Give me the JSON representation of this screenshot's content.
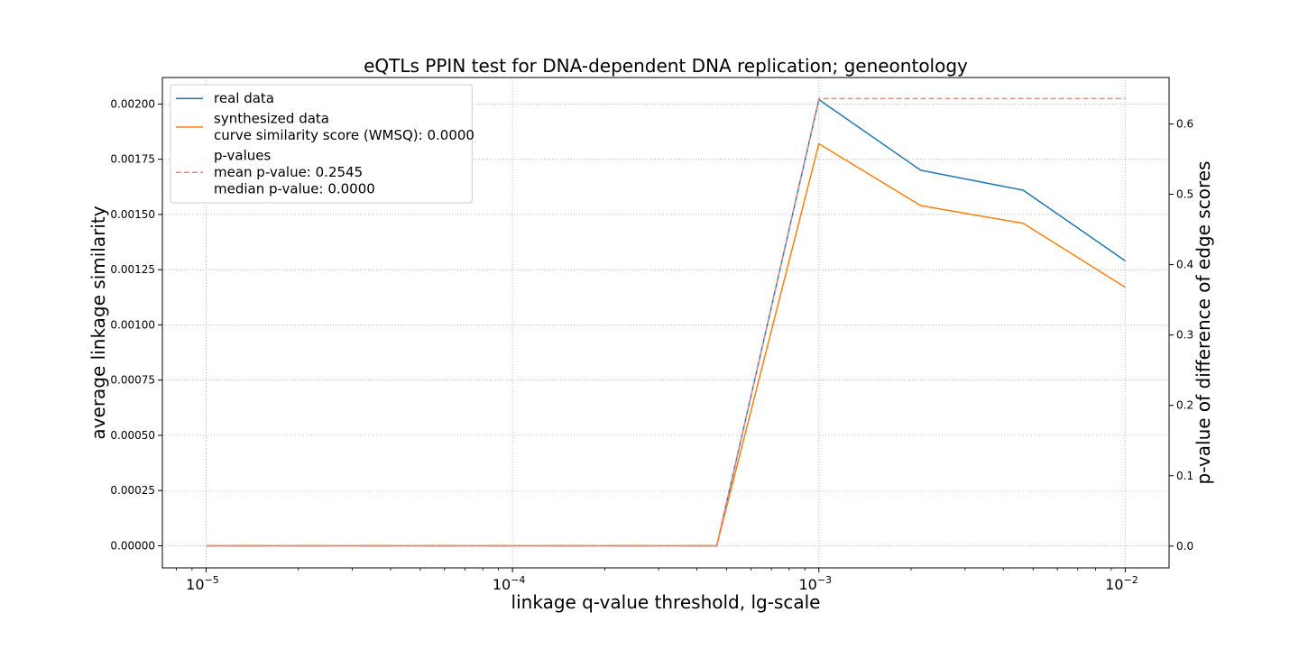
{
  "chart_data": {
    "type": "line",
    "title": "eQTLs PPIN test for DNA-dependent DNA replication; geneontology",
    "xlabel": "linkage q-value threshold, lg-scale",
    "ylabel": "average linkage similarity",
    "y2label": "p-value of difference of edge scores",
    "x_scale": "log",
    "xlim": [
      7.2e-06,
      0.0139
    ],
    "ylim": [
      -0.0001,
      0.00212
    ],
    "y2lim": [
      -0.031,
      0.666
    ],
    "x_ticks": [
      1e-05,
      0.0001,
      0.001,
      0.01
    ],
    "x_tick_labels": [
      {
        "base": "10",
        "exp": "−5"
      },
      {
        "base": "10",
        "exp": "−4"
      },
      {
        "base": "10",
        "exp": "−3"
      },
      {
        "base": "10",
        "exp": "−2"
      }
    ],
    "y_ticks": [
      0,
      0.00025,
      0.0005,
      0.00075,
      0.001,
      0.00125,
      0.0015,
      0.00175,
      0.002
    ],
    "y_tick_labels": [
      "0.00000",
      "0.00025",
      "0.00050",
      "0.00075",
      "0.00100",
      "0.00125",
      "0.00150",
      "0.00175",
      "0.00200"
    ],
    "y2_ticks": [
      0,
      0.1,
      0.2,
      0.3,
      0.4,
      0.5,
      0.6
    ],
    "y2_tick_labels": [
      "0.0",
      "0.1",
      "0.2",
      "0.3",
      "0.4",
      "0.5",
      "0.6"
    ],
    "grid": true,
    "legend_position": "upper left",
    "x": [
      1e-05,
      2.15e-05,
      4.64e-05,
      0.0001,
      0.000215,
      0.000464,
      0.001,
      0.00215,
      0.00464,
      0.01
    ],
    "series": [
      {
        "name": "real data",
        "axis": "left",
        "color": "#1f77b4",
        "style": "solid",
        "values": [
          0,
          0,
          0,
          0,
          0,
          0,
          0.00202,
          0.0017,
          0.00161,
          0.00129
        ]
      },
      {
        "name": "synthesized data",
        "axis": "left",
        "color": "#ff7f0e",
        "style": "solid",
        "values": [
          0,
          0,
          0,
          0,
          0,
          0,
          0.00182,
          0.00154,
          0.00146,
          0.00117
        ]
      },
      {
        "name": "p-values",
        "axis": "right",
        "color": "#ff7f7f",
        "style": "dashed",
        "values": [
          0,
          0,
          0,
          0,
          0,
          0,
          0.636,
          0.636,
          0.636,
          0.636
        ]
      }
    ],
    "legend": [
      {
        "lines": [
          "real data"
        ],
        "color": "#1f77b4",
        "style": "solid"
      },
      {
        "lines": [
          "synthesized data",
          "curve similarity score (WMSQ): 0.0000"
        ],
        "color": "#ff7f0e",
        "style": "solid"
      },
      {
        "lines": [
          "p-values",
          "mean p-value: 0.2545",
          "median p-value: 0.0000"
        ],
        "color": "#ff7f7f",
        "style": "dashed"
      }
    ]
  }
}
